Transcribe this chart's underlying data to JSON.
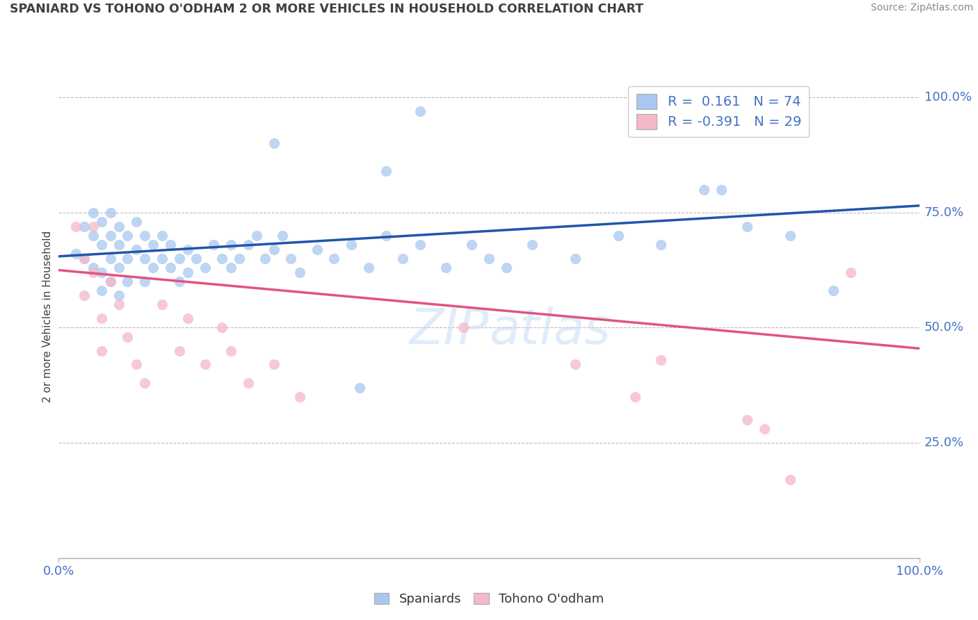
{
  "title": "SPANIARD VS TOHONO O'ODHAM 2 OR MORE VEHICLES IN HOUSEHOLD CORRELATION CHART",
  "source": "Source: ZipAtlas.com",
  "ylabel": "2 or more Vehicles in Household",
  "xlim": [
    0.0,
    1.0
  ],
  "ylim": [
    0.0,
    1.05
  ],
  "blue_R": 0.161,
  "blue_N": 74,
  "pink_R": -0.391,
  "pink_N": 29,
  "blue_color": "#A8C8F0",
  "pink_color": "#F5B8C8",
  "blue_line_color": "#2255AA",
  "pink_line_color": "#E05580",
  "background_color": "#FFFFFF",
  "grid_color": "#BBBBBB",
  "axis_label_color": "#4472C4",
  "title_color": "#404040",
  "blue_line_x": [
    0.0,
    1.0
  ],
  "blue_line_y": [
    0.655,
    0.765
  ],
  "pink_line_x": [
    0.0,
    1.0
  ],
  "pink_line_y": [
    0.625,
    0.455
  ],
  "blue_scatter": [
    [
      0.02,
      0.66
    ],
    [
      0.03,
      0.72
    ],
    [
      0.03,
      0.65
    ],
    [
      0.04,
      0.7
    ],
    [
      0.04,
      0.63
    ],
    [
      0.04,
      0.75
    ],
    [
      0.05,
      0.68
    ],
    [
      0.05,
      0.62
    ],
    [
      0.05,
      0.73
    ],
    [
      0.05,
      0.58
    ],
    [
      0.06,
      0.65
    ],
    [
      0.06,
      0.7
    ],
    [
      0.06,
      0.75
    ],
    [
      0.06,
      0.6
    ],
    [
      0.07,
      0.68
    ],
    [
      0.07,
      0.63
    ],
    [
      0.07,
      0.72
    ],
    [
      0.07,
      0.57
    ],
    [
      0.08,
      0.65
    ],
    [
      0.08,
      0.7
    ],
    [
      0.08,
      0.6
    ],
    [
      0.09,
      0.67
    ],
    [
      0.09,
      0.73
    ],
    [
      0.1,
      0.65
    ],
    [
      0.1,
      0.7
    ],
    [
      0.1,
      0.6
    ],
    [
      0.11,
      0.68
    ],
    [
      0.11,
      0.63
    ],
    [
      0.12,
      0.65
    ],
    [
      0.12,
      0.7
    ],
    [
      0.13,
      0.63
    ],
    [
      0.13,
      0.68
    ],
    [
      0.14,
      0.65
    ],
    [
      0.14,
      0.6
    ],
    [
      0.15,
      0.67
    ],
    [
      0.15,
      0.62
    ],
    [
      0.16,
      0.65
    ],
    [
      0.17,
      0.63
    ],
    [
      0.18,
      0.68
    ],
    [
      0.19,
      0.65
    ],
    [
      0.2,
      0.63
    ],
    [
      0.2,
      0.68
    ],
    [
      0.21,
      0.65
    ],
    [
      0.22,
      0.68
    ],
    [
      0.23,
      0.7
    ],
    [
      0.24,
      0.65
    ],
    [
      0.25,
      0.67
    ],
    [
      0.26,
      0.7
    ],
    [
      0.27,
      0.65
    ],
    [
      0.28,
      0.62
    ],
    [
      0.3,
      0.67
    ],
    [
      0.32,
      0.65
    ],
    [
      0.34,
      0.68
    ],
    [
      0.36,
      0.63
    ],
    [
      0.38,
      0.7
    ],
    [
      0.4,
      0.65
    ],
    [
      0.42,
      0.68
    ],
    [
      0.45,
      0.63
    ],
    [
      0.48,
      0.68
    ],
    [
      0.5,
      0.65
    ],
    [
      0.52,
      0.63
    ],
    [
      0.55,
      0.68
    ],
    [
      0.6,
      0.65
    ],
    [
      0.65,
      0.7
    ],
    [
      0.7,
      0.68
    ],
    [
      0.75,
      0.8
    ],
    [
      0.77,
      0.8
    ],
    [
      0.8,
      0.72
    ],
    [
      0.85,
      0.7
    ],
    [
      0.9,
      0.58
    ],
    [
      0.42,
      0.97
    ],
    [
      0.25,
      0.9
    ],
    [
      0.38,
      0.84
    ],
    [
      0.35,
      0.37
    ]
  ],
  "pink_scatter": [
    [
      0.02,
      0.72
    ],
    [
      0.03,
      0.65
    ],
    [
      0.03,
      0.57
    ],
    [
      0.04,
      0.72
    ],
    [
      0.04,
      0.62
    ],
    [
      0.05,
      0.52
    ],
    [
      0.05,
      0.45
    ],
    [
      0.06,
      0.6
    ],
    [
      0.07,
      0.55
    ],
    [
      0.08,
      0.48
    ],
    [
      0.09,
      0.42
    ],
    [
      0.1,
      0.38
    ],
    [
      0.12,
      0.55
    ],
    [
      0.14,
      0.45
    ],
    [
      0.15,
      0.52
    ],
    [
      0.17,
      0.42
    ],
    [
      0.19,
      0.5
    ],
    [
      0.2,
      0.45
    ],
    [
      0.22,
      0.38
    ],
    [
      0.25,
      0.42
    ],
    [
      0.28,
      0.35
    ],
    [
      0.47,
      0.5
    ],
    [
      0.6,
      0.42
    ],
    [
      0.67,
      0.35
    ],
    [
      0.7,
      0.43
    ],
    [
      0.8,
      0.3
    ],
    [
      0.82,
      0.28
    ],
    [
      0.85,
      0.17
    ],
    [
      0.92,
      0.62
    ]
  ]
}
